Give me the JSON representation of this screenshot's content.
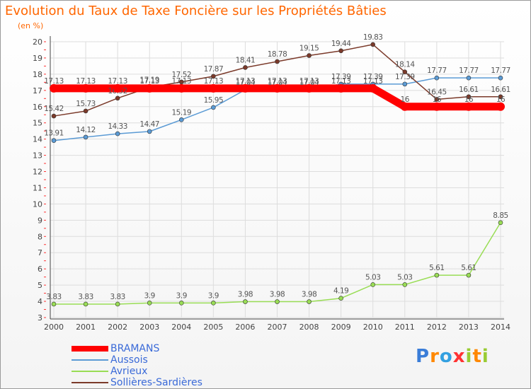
{
  "title": "Evolution du Taux de Taxe Foncière sur les Propriétés Bâties",
  "unit": "(en %)",
  "logo": "Proxiti",
  "colors": {
    "title": "#ff6600",
    "grid": "#dddddd",
    "axis": "#444444",
    "label": "#444444",
    "legend_text": "#3a6ad8"
  },
  "chart_data": {
    "type": "line",
    "title": "Evolution du Taux de Taxe Foncière sur les Propriétés Bâties",
    "ylabel": "(en %)",
    "xlabel": "",
    "ylim": [
      3,
      20
    ],
    "yticks": [
      3,
      4,
      5,
      6,
      7,
      8,
      9,
      10,
      11,
      12,
      13,
      14,
      15,
      16,
      17,
      18,
      19,
      20
    ],
    "categories": [
      "2000",
      "2001",
      "2002",
      "2003",
      "2004",
      "2005",
      "2006",
      "2007",
      "2008",
      "2009",
      "2010",
      "2011",
      "2012",
      "2013",
      "2014"
    ],
    "grid": true,
    "legend_position": "bottom-left",
    "series": [
      {
        "name": "BRAMANS",
        "color": "#ff0000",
        "values": [
          17.13,
          17.13,
          17.13,
          17.13,
          17.13,
          17.13,
          17.13,
          17.13,
          17.13,
          17.13,
          17.13,
          16,
          16,
          16,
          16
        ],
        "labels": [
          "17.13",
          "17.13",
          "17.13",
          "17.13",
          "17.13",
          "17.13",
          "17.13",
          "17.13",
          "17.13",
          "17.13",
          "17.13",
          "16",
          "16",
          "16",
          "16"
        ]
      },
      {
        "name": "Aussois",
        "color": "#5b9bd5",
        "values": [
          13.91,
          14.12,
          14.33,
          14.47,
          15.19,
          15.95,
          17.04,
          17.04,
          17.04,
          17.39,
          17.39,
          17.39,
          17.77,
          17.77,
          17.77
        ],
        "labels": [
          "13.91",
          "14.12",
          "14.33",
          "14.47",
          "15.19",
          "15.95",
          "17.04",
          "17.04",
          "17.04",
          "17.39",
          "17.39",
          "17.39",
          "17.77",
          "17.77",
          "17.77"
        ]
      },
      {
        "name": "Avrieux",
        "color": "#99dd55",
        "values": [
          3.83,
          3.83,
          3.83,
          3.9,
          3.9,
          3.9,
          3.98,
          3.98,
          3.98,
          4.19,
          5.03,
          5.03,
          5.61,
          5.61,
          8.85
        ],
        "labels": [
          "3.83",
          "3.83",
          "3.83",
          "3.9",
          "3.9",
          "3.9",
          "3.98",
          "3.98",
          "3.98",
          "4.19",
          "5.03",
          "5.03",
          "5.61",
          "5.61",
          "8.85"
        ]
      },
      {
        "name": "Sollières-Sardières",
        "color": "#7b3a2a",
        "values": [
          15.42,
          15.73,
          16.52,
          17.19,
          17.52,
          17.87,
          18.41,
          18.78,
          19.15,
          19.44,
          19.83,
          18.14,
          16.45,
          16.61,
          16.61
        ],
        "labels": [
          "15.42",
          "15.73",
          "16.52",
          "17.19",
          "17.52",
          "17.87",
          "18.41",
          "18.78",
          "19.15",
          "19.44",
          "19.83",
          "18.14",
          "16.45",
          "16.61",
          "16.61"
        ]
      }
    ]
  }
}
